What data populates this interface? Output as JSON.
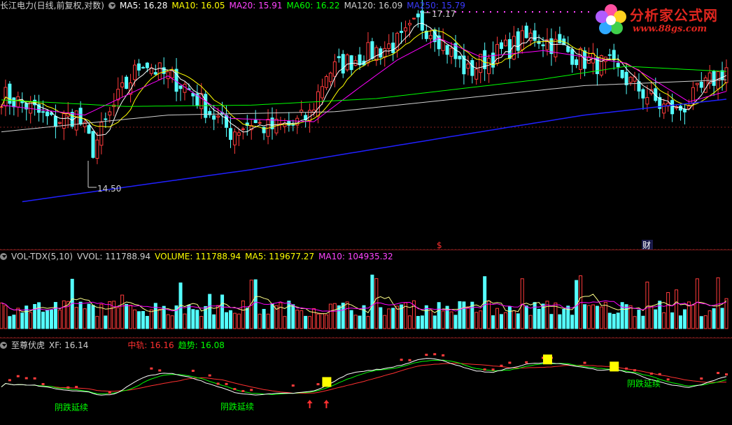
{
  "colors": {
    "up": "#ff3b3b",
    "down": "#54ffff",
    "ma5": "#ffffff",
    "ma10": "#ffff00",
    "ma20": "#ff00ff",
    "ma60": "#00ff00",
    "ma120": "#cfcfcf",
    "ma250": "#2020ff",
    "mid": "#ff3030",
    "trend": "#00ff00",
    "xf": "#ffffff",
    "signal": "#ffff00"
  },
  "price_panel": {
    "title": "长江电力(日线,前复权,对数)",
    "indicators": [
      {
        "label": "MA5: 16.28",
        "color": "#ffffff"
      },
      {
        "label": "MA10: 16.05",
        "color": "#ffff00"
      },
      {
        "label": "MA20: 15.91",
        "color": "#ff44ff"
      },
      {
        "label": "MA60: 16.22",
        "color": "#00ff00"
      },
      {
        "label": "MA120: 16.09",
        "color": "#cfcfcf"
      },
      {
        "label": "MA250: 15.79",
        "color": "#3a3aff"
      }
    ],
    "high_label": "17.17",
    "low_label": "14.50",
    "event_markers": [
      "$",
      "财"
    ]
  },
  "volume_panel": {
    "title": "VOL-TDX(5,10)",
    "indicators": [
      {
        "label": "VVOL: 111788.94",
        "color": "#cfcfcf"
      },
      {
        "label": "VOLUME: 111788.94",
        "color": "#ffff00"
      },
      {
        "label": "MA5: 119677.27",
        "color": "#ffff00"
      },
      {
        "label": "MA10: 104935.32",
        "color": "#ff44ff"
      }
    ]
  },
  "indicator_panel": {
    "title": "至尊伏虎",
    "indicators": [
      {
        "label": "XF: 16.14",
        "color": "#cfcfcf"
      },
      {
        "label": "中轨: 16.16",
        "color": "#ff3030"
      },
      {
        "label": "趋势: 16.08",
        "color": "#00ff00"
      }
    ],
    "annotations": [
      "阴跌延续",
      "阴跌延续",
      "阴跌延续"
    ]
  },
  "logo": {
    "name": "分析家公式网",
    "url": "www.88gs.com"
  },
  "chart_data": [
    {
      "type": "candlestick",
      "title": "长江电力(日线,前复权,对数)",
      "scale": "log",
      "yrange": [
        14.3,
        17.3
      ],
      "marked_high": 17.17,
      "marked_low": 14.5,
      "ma_latest": {
        "MA5": 16.28,
        "MA10": 16.05,
        "MA20": 15.91,
        "MA60": 16.22,
        "MA120": 16.09,
        "MA250": 15.79
      },
      "close_keypoints": [
        [
          0,
          15.85
        ],
        [
          6,
          15.7
        ],
        [
          12,
          15.45
        ],
        [
          18,
          15.55
        ],
        [
          22,
          15.05
        ],
        [
          28,
          15.8
        ],
        [
          34,
          16.4
        ],
        [
          38,
          16.2
        ],
        [
          44,
          16.0
        ],
        [
          50,
          15.6
        ],
        [
          55,
          15.3
        ],
        [
          60,
          15.45
        ],
        [
          64,
          15.35
        ],
        [
          70,
          15.4
        ],
        [
          74,
          15.55
        ],
        [
          78,
          16.2
        ],
        [
          84,
          16.4
        ],
        [
          90,
          16.55
        ],
        [
          96,
          16.7
        ],
        [
          100,
          17.0
        ],
        [
          104,
          16.85
        ],
        [
          108,
          16.5
        ],
        [
          112,
          16.2
        ],
        [
          116,
          16.4
        ],
        [
          122,
          16.6
        ],
        [
          128,
          16.8
        ],
        [
          134,
          16.6
        ],
        [
          140,
          16.4
        ],
        [
          146,
          16.3
        ],
        [
          152,
          16.0
        ],
        [
          158,
          15.7
        ],
        [
          162,
          15.6
        ],
        [
          166,
          15.8
        ],
        [
          170,
          16.05
        ],
        [
          174,
          16.28
        ]
      ],
      "ma_keypoints": {
        "MA20": [
          [
            0,
            15.7
          ],
          [
            20,
            15.55
          ],
          [
            40,
            16.15
          ],
          [
            55,
            15.5
          ],
          [
            75,
            15.45
          ],
          [
            95,
            16.4
          ],
          [
            105,
            16.75
          ],
          [
            115,
            16.45
          ],
          [
            130,
            16.55
          ],
          [
            150,
            16.35
          ],
          [
            165,
            15.75
          ],
          [
            174,
            15.91
          ]
        ],
        "MA60": [
          [
            0,
            15.78
          ],
          [
            30,
            15.68
          ],
          [
            60,
            15.7
          ],
          [
            90,
            15.8
          ],
          [
            110,
            15.95
          ],
          [
            130,
            16.1
          ],
          [
            150,
            16.3
          ],
          [
            174,
            16.22
          ]
        ],
        "MA120": [
          [
            0,
            15.3
          ],
          [
            40,
            15.55
          ],
          [
            80,
            15.6
          ],
          [
            110,
            15.8
          ],
          [
            140,
            16.0
          ],
          [
            174,
            16.09
          ]
        ],
        "MA250": [
          [
            5,
            14.3
          ],
          [
            60,
            14.75
          ],
          [
            100,
            15.15
          ],
          [
            140,
            15.55
          ],
          [
            174,
            15.79
          ]
        ]
      },
      "bar_count": 175
    },
    {
      "type": "bar",
      "title": "VOL-TDX(5,10)",
      "VVOL": 111788.94,
      "VOLUME": 111788.94,
      "MA5": 119677.27,
      "MA10": 104935.32,
      "ylim": [
        0,
        240000
      ]
    },
    {
      "type": "line",
      "title": "至尊伏虎",
      "series": [
        {
          "name": "XF",
          "latest": 16.14
        },
        {
          "name": "中轨",
          "latest": 16.16
        },
        {
          "name": "趋势",
          "latest": 16.08
        }
      ],
      "annotation_label": "阴跌延续",
      "signal_count": 3,
      "up_arrow_count": 2
    }
  ]
}
